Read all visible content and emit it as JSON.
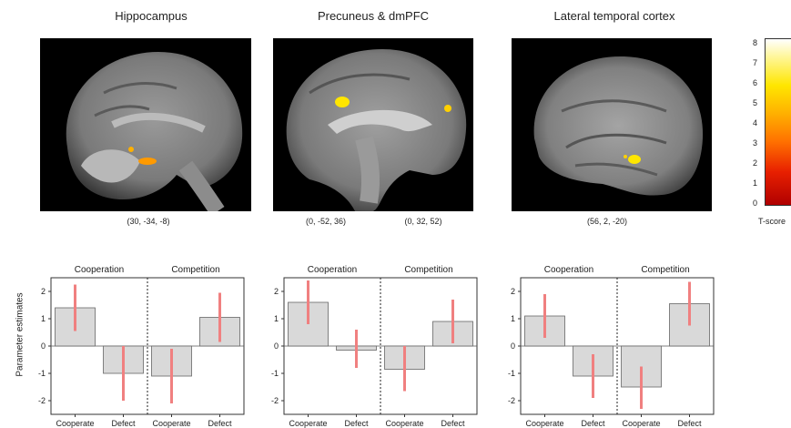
{
  "brains": [
    {
      "title": "Hippocampus",
      "coords": [
        "(30, -34, -8)"
      ]
    },
    {
      "title": "Precuneus & dmPFC",
      "coords": [
        "(0, -52, 36)",
        "(0, 32, 52)"
      ]
    },
    {
      "title": "Lateral temporal cortex",
      "coords": [
        "(56, 2, -20)"
      ]
    }
  ],
  "colorbar": {
    "label": "T-score",
    "ticks": [
      "8",
      "7",
      "6",
      "5",
      "4",
      "3",
      "2",
      "1",
      "0"
    ],
    "colors": [
      "#ffffff",
      "#ffe600",
      "#ff7000",
      "#b00000"
    ]
  },
  "ylabel": "Parameter estimates",
  "chart_data": [
    {
      "type": "bar",
      "groups": [
        "Cooperation",
        "Competition"
      ],
      "categories": [
        "Cooperate",
        "Defect",
        "Cooperate",
        "Defect"
      ],
      "values": [
        1.4,
        -1.0,
        -1.1,
        1.05
      ],
      "error_low": [
        0.55,
        -2.0,
        -2.1,
        0.15
      ],
      "error_high": [
        2.25,
        0.0,
        -0.1,
        1.95
      ],
      "ylim": [
        -2.5,
        2.5
      ],
      "yticks": [
        "2",
        "1",
        "0",
        "-1",
        "-2"
      ],
      "bar_color": "#d9d9d9",
      "error_color": "#f08080"
    },
    {
      "type": "bar",
      "groups": [
        "Cooperation",
        "Competition"
      ],
      "categories": [
        "Cooperate",
        "Defect",
        "Cooperate",
        "Defect"
      ],
      "values": [
        1.6,
        -0.15,
        -0.85,
        0.9
      ],
      "error_low": [
        0.8,
        -0.8,
        -1.65,
        0.1
      ],
      "error_high": [
        2.4,
        0.6,
        0.0,
        1.7
      ],
      "ylim": [
        -2.5,
        2.5
      ],
      "yticks": [
        "2",
        "1",
        "0",
        "-1",
        "-2"
      ],
      "bar_color": "#d9d9d9",
      "error_color": "#f08080"
    },
    {
      "type": "bar",
      "groups": [
        "Cooperation",
        "Competition"
      ],
      "categories": [
        "Cooperate",
        "Defect",
        "Cooperate",
        "Defect"
      ],
      "values": [
        1.1,
        -1.1,
        -1.5,
        1.55
      ],
      "error_low": [
        0.3,
        -1.9,
        -2.3,
        0.75
      ],
      "error_high": [
        1.9,
        -0.3,
        -0.75,
        2.35
      ],
      "ylim": [
        -2.5,
        2.5
      ],
      "yticks": [
        "2",
        "1",
        "0",
        "-1",
        "-2"
      ],
      "bar_color": "#d9d9d9",
      "error_color": "#f08080"
    }
  ]
}
